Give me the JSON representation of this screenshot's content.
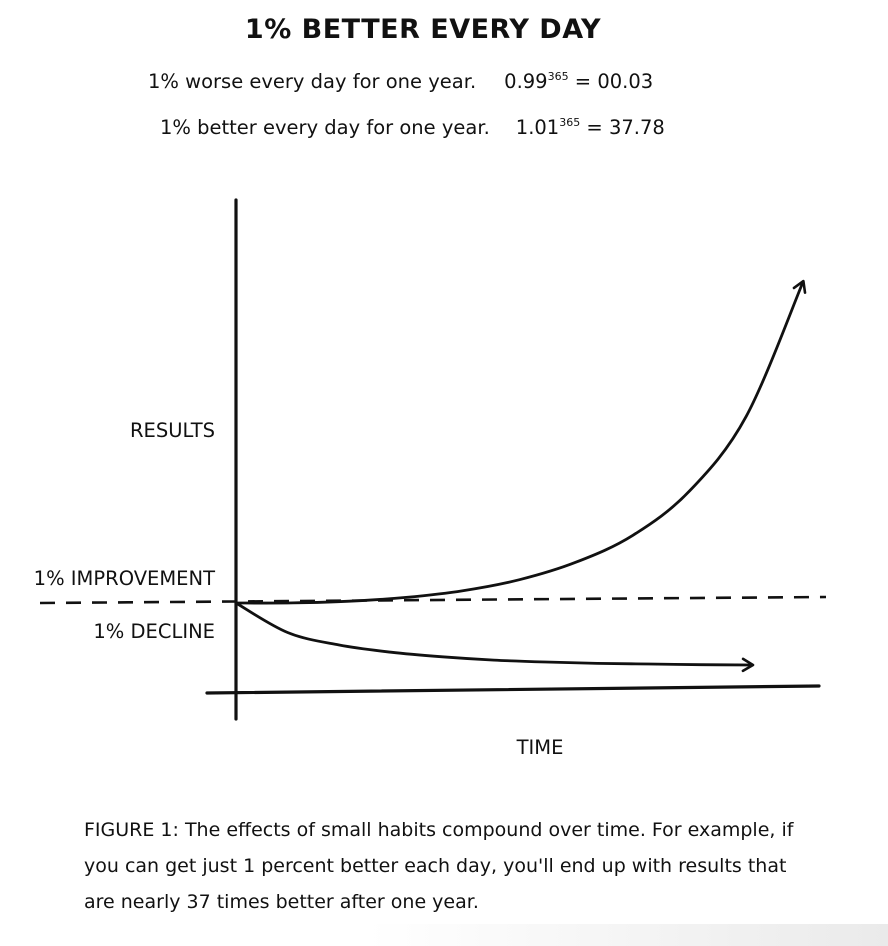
{
  "chart_data": {
    "type": "line",
    "title": "1% BETTER EVERY DAY",
    "formulas": [
      {
        "text": "1% worse every day for one year.",
        "base": "0.99",
        "exponent": "365",
        "result": "00.03"
      },
      {
        "text": "1% better every day for one year.",
        "base": "1.01",
        "exponent": "365",
        "result": "37.78"
      }
    ],
    "xlabel": "TIME",
    "ylabel": "RESULTS",
    "baseline": {
      "value": 1.0
    },
    "annotations": [
      "1% IMPROVEMENT",
      "1% DECLINE"
    ],
    "x": [
      0,
      0.1,
      0.2,
      0.3,
      0.4,
      0.5,
      0.6,
      0.7,
      0.8,
      0.9,
      1.0
    ],
    "series": [
      {
        "values": [
          1.0,
          1.01,
          1.15,
          1.48,
          2.05,
          3.0,
          4.5,
          6.8,
          10.6,
          17.0,
          28.5
        ]
      },
      {
        "values": [
          1.0,
          0.55,
          0.36,
          0.25,
          0.18,
          0.13,
          0.1,
          0.08,
          0.07,
          0.06,
          0.055
        ]
      }
    ],
    "grid": false,
    "legend": "none"
  },
  "caption": "FIGURE 1: The effects of small habits compound over time. For example, if you can get just 1 percent better each day, you'll end up with results that are nearly 37 times better after one year.",
  "colors": {
    "ink": "#111111",
    "background": "#ffffff"
  }
}
